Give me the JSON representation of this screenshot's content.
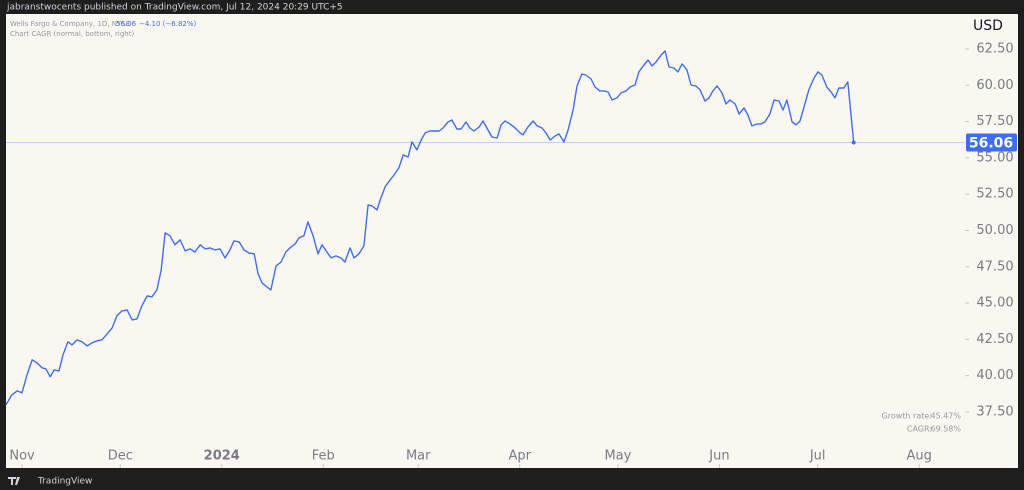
{
  "header": {
    "text": "jabranstwocents published on TradingView.com, Jul 12, 2024 20:29 UTC+5"
  },
  "footer": {
    "text": "TradingView"
  },
  "chart_data": {
    "type": "line",
    "legend_title": "Wells Fargo & Company, 1D, NYSE",
    "change": "−4.10 (−6.82%)",
    "indicator": "Chart CAGR (normal, bottom, right)",
    "currency": "USD",
    "stats": [
      {
        "label": "Growth rate:",
        "value": "45.47%"
      },
      {
        "label": "CAGR:",
        "value": "69.58%"
      }
    ],
    "xlim": [
      -4.9,
      288
    ],
    "xticks": [
      {
        "value": 0,
        "label": "Nov"
      },
      {
        "value": 30,
        "label": "Dec"
      },
      {
        "value": 61,
        "label": "2024"
      },
      {
        "value": 92,
        "label": "Feb"
      },
      {
        "value": 121,
        "label": "Mar"
      },
      {
        "value": 152,
        "label": "Apr"
      },
      {
        "value": 182,
        "label": "May"
      },
      {
        "value": 213,
        "label": "Jun"
      },
      {
        "value": 243,
        "label": "Jul"
      },
      {
        "value": 274,
        "label": "Aug"
      }
    ],
    "ylim": [
      33.64,
      64.91
    ],
    "yticks": [
      {
        "value": 37.5,
        "label": "37.50"
      },
      {
        "value": 40,
        "label": "40.00"
      },
      {
        "value": 42.5,
        "label": "42.50"
      },
      {
        "value": 45,
        "label": "45.00"
      },
      {
        "value": 47.5,
        "label": "47.50"
      },
      {
        "value": 50,
        "label": "50.00"
      },
      {
        "value": 52.5,
        "label": "52.50"
      },
      {
        "value": 55,
        "label": "55.00"
      },
      {
        "value": 57.5,
        "label": "57.50"
      },
      {
        "value": 60,
        "label": "60.00"
      },
      {
        "value": 62.5,
        "label": "62.50"
      }
    ],
    "x": [
      -4.9,
      -3.1,
      -1.5,
      0,
      1.5,
      3.1,
      4.6,
      6.1,
      7.3,
      8.6,
      9.8,
      11.3,
      12.5,
      14.0,
      15.3,
      16.8,
      18.3,
      19.9,
      21.4,
      22.9,
      24.4,
      26.0,
      27.5,
      29.0,
      30.5,
      32.1,
      33.6,
      35.1,
      36.6,
      38.2,
      39.7,
      41.2,
      42.5,
      43.7,
      45.2,
      46.7,
      48.3,
      49.8,
      51.3,
      52.8,
      54.4,
      55.9,
      57.4,
      58.9,
      60.5,
      62.0,
      63.5,
      64.7,
      66.3,
      67.8,
      69.3,
      70.9,
      72.1,
      73.3,
      74.8,
      76.0,
      77.6,
      79.1,
      80.6,
      81.8,
      83.4,
      84.6,
      86.1,
      87.3,
      88.9,
      90.4,
      91.6,
      93.1,
      94.4,
      95.9,
      97.4,
      98.6,
      100.2,
      101.4,
      102.9,
      104.4,
      105.7,
      106.9,
      108.4,
      109.6,
      110.9,
      112.4,
      113.6,
      115.1,
      116.4,
      117.9,
      119.1,
      120.6,
      121.9,
      123.1,
      124.6,
      125.8,
      127.4,
      128.6,
      130.1,
      131.3,
      132.8,
      134.1,
      135.6,
      136.8,
      138.0,
      139.6,
      140.8,
      142.3,
      143.5,
      145.1,
      146.3,
      147.5,
      149.0,
      150.3,
      151.8,
      153.0,
      154.5,
      156.1,
      157.3,
      158.8,
      160.0,
      161.3,
      162.8,
      164.0,
      165.5,
      166.7,
      168.3,
      169.5,
      171.0,
      172.2,
      173.8,
      175.0,
      176.5,
      177.7,
      179.0,
      180.2,
      181.7,
      182.9,
      184.5,
      185.7,
      187.2,
      188.4,
      189.7,
      191.2,
      192.4,
      193.6,
      195.2,
      196.4,
      197.6,
      199.1,
      200.3,
      201.6,
      203.1,
      204.3,
      205.8,
      207.1,
      208.6,
      209.8,
      211.0,
      212.3,
      213.8,
      215.0,
      216.2,
      217.8,
      219.0,
      220.5,
      221.7,
      222.9,
      224.5,
      225.7,
      226.9,
      228.4,
      229.7,
      231.2,
      232.4,
      233.6,
      235.2,
      236.4,
      237.6,
      239.1,
      240.3,
      241.9,
      243.1,
      244.3,
      245.8,
      247.1,
      248.3,
      249.5,
      251.0,
      252.2,
      254
    ],
    "series": [
      {
        "name": "Wells Fargo & Company",
        "color": "#3d6ef0",
        "values": [
          37.99,
          38.68,
          38.95,
          38.82,
          40.05,
          41.09,
          40.88,
          40.54,
          40.47,
          39.92,
          40.4,
          40.33,
          41.43,
          42.33,
          42.12,
          42.46,
          42.33,
          42.05,
          42.26,
          42.4,
          42.46,
          42.88,
          43.29,
          44.12,
          44.46,
          44.53,
          43.84,
          43.91,
          44.81,
          45.49,
          45.43,
          45.91,
          47.28,
          49.83,
          49.63,
          49.01,
          49.35,
          48.59,
          48.73,
          48.52,
          49.01,
          48.73,
          48.8,
          48.66,
          48.73,
          48.11,
          48.66,
          49.28,
          49.21,
          48.66,
          48.45,
          48.39,
          47.01,
          46.39,
          46.11,
          45.91,
          47.56,
          47.83,
          48.52,
          48.8,
          49.07,
          49.49,
          49.63,
          50.59,
          49.63,
          48.39,
          49.01,
          48.52,
          48.11,
          48.25,
          48.11,
          47.83,
          48.8,
          48.11,
          48.39,
          48.94,
          51.76,
          51.69,
          51.42,
          52.24,
          53.0,
          53.48,
          53.82,
          54.31,
          55.2,
          55.06,
          56.1,
          55.55,
          56.23,
          56.72,
          56.85,
          56.85,
          56.85,
          57.06,
          57.47,
          57.61,
          56.99,
          56.99,
          57.47,
          57.06,
          56.85,
          57.13,
          57.54,
          56.92,
          56.44,
          56.37,
          57.27,
          57.54,
          57.34,
          57.13,
          56.79,
          56.58,
          57.13,
          57.54,
          57.2,
          57.06,
          56.72,
          56.23,
          56.51,
          56.65,
          56.1,
          56.85,
          58.3,
          59.95,
          60.78,
          60.71,
          60.43,
          59.88,
          59.61,
          59.61,
          59.54,
          58.99,
          59.13,
          59.47,
          59.61,
          59.88,
          60.02,
          60.92,
          61.33,
          61.74,
          61.33,
          61.6,
          62.09,
          62.36,
          61.26,
          61.19,
          60.92,
          61.47,
          61.05,
          60.02,
          59.95,
          59.68,
          58.92,
          59.13,
          59.61,
          59.95,
          59.47,
          58.71,
          58.99,
          58.71,
          58.02,
          58.44,
          57.96,
          57.2,
          57.34,
          57.34,
          57.47,
          58.02,
          58.99,
          58.92,
          58.3,
          58.99,
          57.47,
          57.27,
          57.54,
          58.71,
          59.68,
          60.5,
          60.92,
          60.71,
          59.88,
          59.54,
          59.13,
          59.81,
          59.81,
          60.23,
          56.06
        ]
      }
    ]
  }
}
